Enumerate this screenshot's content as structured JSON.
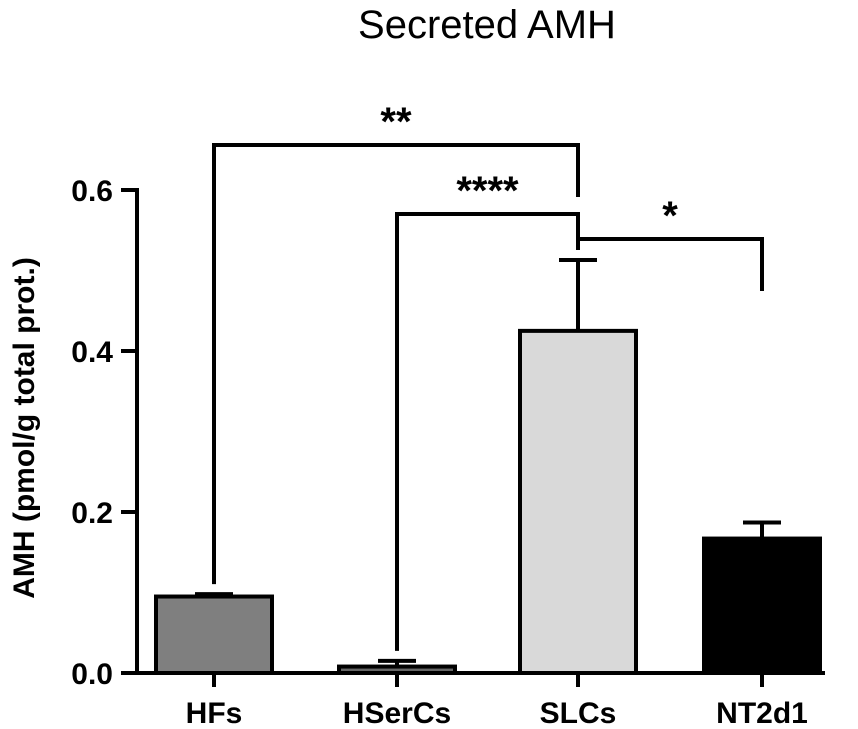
{
  "chart_data": {
    "type": "bar",
    "title": "Secreted AMH",
    "xlabel": "",
    "ylabel": "AMH (pmol/g total prot.)",
    "ylim": [
      0,
      0.6
    ],
    "yticks": [
      "0.0",
      "0.2",
      "0.4",
      "0.6"
    ],
    "grid": false,
    "categories": [
      "HFs",
      "HSerCs",
      "SLCs",
      "NT2d1"
    ],
    "values": [
      0.095,
      0.008,
      0.425,
      0.167
    ],
    "errors": [
      0.003,
      0.007,
      0.088,
      0.02
    ],
    "colors": [
      "#7f7f7f",
      "#666666",
      "#d9d9d9",
      "#000000"
    ],
    "significance": [
      {
        "from": "HFs",
        "to": "SLCs",
        "label": "**"
      },
      {
        "from": "HSerCs",
        "to": "SLCs",
        "label": "****"
      },
      {
        "from": "SLCs",
        "to": "NT2d1",
        "label": "*"
      }
    ]
  }
}
